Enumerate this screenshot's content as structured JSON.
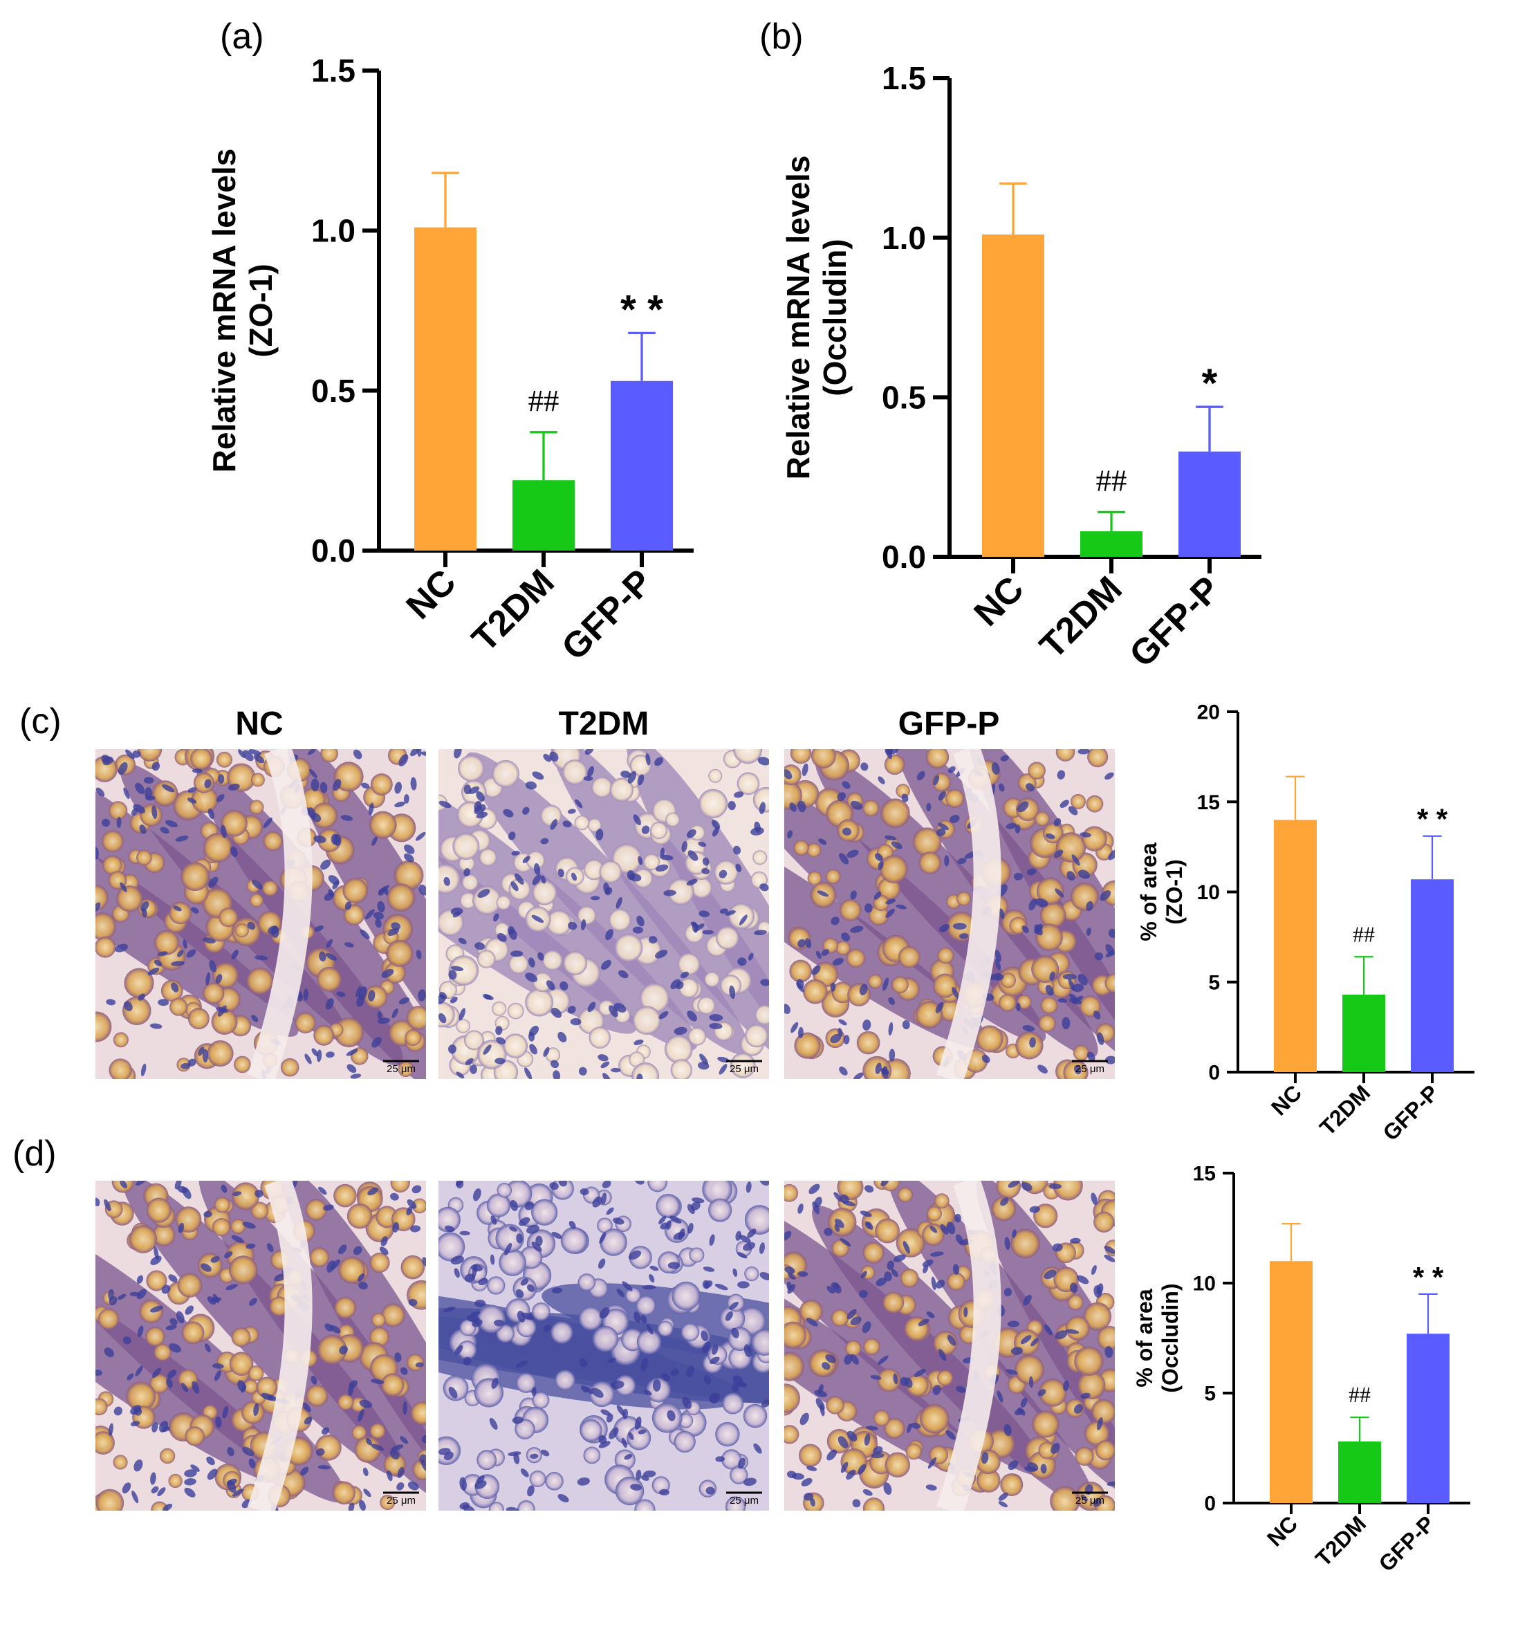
{
  "figure": {
    "panel_labels": [
      "(a)",
      "(b)",
      "(c)",
      "(d)"
    ],
    "group_titles": [
      "NC",
      "T2DM",
      "GFP-P"
    ],
    "scale_bar_label": "25 μm"
  },
  "colors": {
    "NC": "#ffa437",
    "T2DM": "#16c916",
    "GFP-P": "#5a5cff",
    "NC_err": "#ffa437",
    "T2DM_err": "#16c916",
    "GFP-P_err": "#5a5cff"
  },
  "micrographs": {
    "zo1": [
      {
        "group": "NC",
        "tone": "brown-purple"
      },
      {
        "group": "T2DM",
        "tone": "pale-goblet"
      },
      {
        "group": "GFP-P",
        "tone": "brown-purple"
      }
    ],
    "occludin": [
      {
        "group": "NC",
        "tone": "brown-goblet"
      },
      {
        "group": "T2DM",
        "tone": "blue-dense"
      },
      {
        "group": "GFP-P",
        "tone": "brown-blue"
      }
    ]
  },
  "chart_data": [
    {
      "type": "bar",
      "panel": "(a)",
      "categories": [
        "NC",
        "T2DM",
        "GFP-P"
      ],
      "values": [
        1.01,
        0.22,
        0.53
      ],
      "errors": [
        0.17,
        0.15,
        0.15
      ],
      "annotations": [
        "",
        "##",
        "**"
      ],
      "ylabel": "Relative mRNA levels\n(ZO-1)",
      "ylim": [
        0,
        1.5
      ],
      "yticks": [
        "0.0",
        "0.5",
        "1.0",
        "1.5"
      ],
      "grid": false
    },
    {
      "type": "bar",
      "panel": "(b)",
      "categories": [
        "NC",
        "T2DM",
        "GFP-P"
      ],
      "values": [
        1.01,
        0.08,
        0.33
      ],
      "errors": [
        0.16,
        0.06,
        0.14
      ],
      "annotations": [
        "",
        "##",
        "*"
      ],
      "ylabel": "Relative mRNA levels\n(Occludin)",
      "ylim": [
        0,
        1.5
      ],
      "yticks": [
        "0.0",
        "0.5",
        "1.0",
        "1.5"
      ],
      "grid": false
    },
    {
      "type": "bar",
      "panel": "(c)",
      "categories": [
        "NC",
        "T2DM",
        "GFP-P"
      ],
      "values": [
        14.0,
        4.3,
        10.7
      ],
      "errors": [
        2.4,
        2.1,
        2.4
      ],
      "annotations": [
        "",
        "##",
        "**"
      ],
      "ylabel": "% of area\n(ZO-1)",
      "ylim": [
        0,
        20
      ],
      "yticks": [
        "0",
        "5",
        "10",
        "15",
        "20"
      ],
      "grid": false
    },
    {
      "type": "bar",
      "panel": "(d)",
      "categories": [
        "NC",
        "T2DM",
        "GFP-P"
      ],
      "values": [
        11.0,
        2.8,
        7.7
      ],
      "errors": [
        1.7,
        1.1,
        1.8
      ],
      "annotations": [
        "",
        "##",
        "**"
      ],
      "ylabel": "% of area\n(Occludin)",
      "ylim": [
        0,
        15
      ],
      "yticks": [
        "0",
        "5",
        "10",
        "15"
      ],
      "grid": false
    }
  ]
}
